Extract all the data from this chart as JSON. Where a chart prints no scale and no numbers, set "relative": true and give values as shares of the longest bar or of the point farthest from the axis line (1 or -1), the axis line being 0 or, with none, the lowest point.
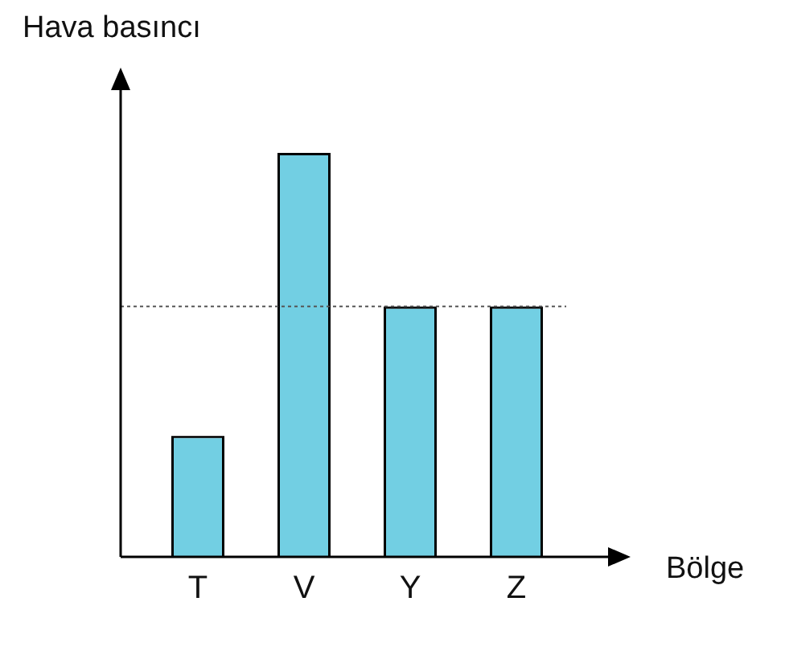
{
  "chart_data": {
    "type": "bar",
    "xlabel": "Bölge",
    "ylabel": "Hava basıncı",
    "categories": [
      "T",
      "V",
      "Y",
      "Z"
    ],
    "values": [
      0.3,
      1,
      0.62,
      0.62
    ],
    "color": "#72cfe3",
    "relative": true,
    "grid": false,
    "legend": false,
    "ref_lines": [
      {
        "axis": "y",
        "value": 0.62,
        "line_style": "dotted",
        "color": "#555555"
      }
    ]
  }
}
